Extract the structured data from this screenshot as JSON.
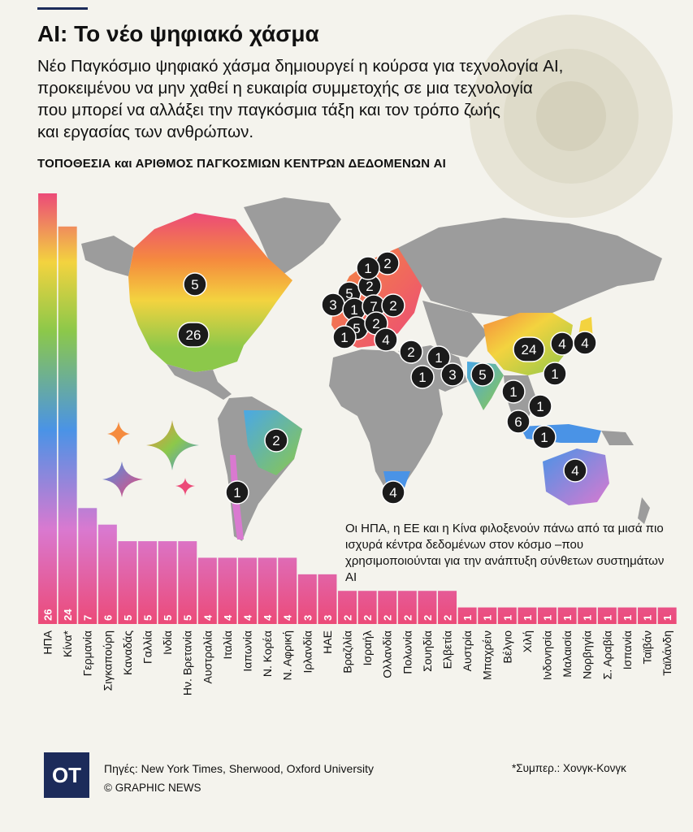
{
  "header": {
    "title": "AI: Το νέο ψηφιακό χάσμα",
    "subtitle_lines": [
      "Νέο Παγκόσμιο ψηφιακό χάσμα δημιουργεί η κούρσα για τεχνολογία AI,",
      "προκειμένου να μην χαθεί η ευκαιρία συμμετοχής σε μια τεχνολογία",
      "που μπορεί να αλλάξει την παγκόσμια τάξη και τον τρόπο ζωής",
      "και εργασίας των ανθρώπων."
    ]
  },
  "chart_data": {
    "type": "bar",
    "title": "ΤΟΠΟΘΕΣΙΑ και ΑΡΙΘΜΟΣ ΠΑΓΚΟΣΜΙΩΝ ΚΕΝΤΡΩΝ ΔΕΔΟΜΕΝΩΝ AI",
    "categories": [
      "ΗΠΑ",
      "Κίνα*",
      "Γερμανία",
      "Σιγκαπούρη",
      "Καναδάς",
      "Γαλλία",
      "Ινδία",
      "Ην. Βρετανία",
      "Αυστραλία",
      "Ιταλία",
      "Ιαπωνία",
      "Ν. Κορέα",
      "Ν. Αφρική",
      "Ιρλανδία",
      "ΗΑΕ",
      "Βραζιλία",
      "Ισραήλ",
      "Ολλανδία",
      "Πολωνία",
      "Σουηδία",
      "Ελβετία",
      "Αυστρία",
      "Μπαχρέιν",
      "Βέλγιο",
      "Χιλή",
      "Ινδονησία",
      "Μαλαισία",
      "Νορβηγία",
      "Σ. Αραβία",
      "Ισπανία",
      "Ταϊβάν",
      "Ταϊλάνδη"
    ],
    "values": [
      26,
      24,
      7,
      6,
      5,
      5,
      5,
      5,
      4,
      4,
      4,
      4,
      4,
      3,
      3,
      2,
      2,
      2,
      2,
      2,
      2,
      1,
      1,
      1,
      1,
      1,
      1,
      1,
      1,
      1,
      1,
      1
    ],
    "ylim": [
      0,
      26
    ],
    "annotation": "Οι ΗΠΑ, η ΕΕ και η Κίνα φιλοξενούν  πάνω από τα μισά πιο ισχυρά κέντρα  δεδομένων στον κόσμο –που χρησιμοποιούνται για την ανάπτυξη σύνθετων συστημάτων AI",
    "map_markers": [
      "5",
      "26",
      "1",
      "2",
      "5",
      "2",
      "3",
      "1",
      "7",
      "2",
      "5",
      "2",
      "1",
      "4",
      "2",
      "1",
      "1",
      "3",
      "5",
      "24",
      "4",
      "4",
      "1",
      "1",
      "1",
      "6",
      "1",
      "2",
      "1",
      "4",
      "4"
    ]
  },
  "footer": {
    "logo": "OT",
    "sources": "Πηγές: New York Times, Sherwood, Oxford University",
    "credit": "© GRAPHIC NEWS",
    "footnote": "*Συμπερ.: Χονγκ-Κονγκ"
  },
  "colors": {
    "bg": "#f4f3ed",
    "land": "#9c9c9c",
    "pink": "#ec4a78",
    "purple": "#d979d0",
    "blue": "#4a93e6",
    "green": "#8cc84a",
    "yellow": "#f3d33f",
    "orange": "#f58b3e",
    "marker": "#1b1b1b",
    "navy": "#1c2b5a"
  }
}
